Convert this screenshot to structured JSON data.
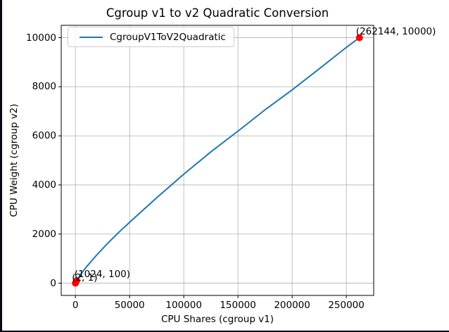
{
  "figure": {
    "background": "#ffffff",
    "frame_color": "#0a0a14"
  },
  "chart_data": {
    "type": "line",
    "title": "Cgroup v1 to v2 Quadratic Conversion",
    "xlabel": "CPU Shares (cgroup v1)",
    "ylabel": "CPU Weight (cgroup v2)",
    "grid": true,
    "grid_color": "#b0b0b0",
    "axes_color": "#000000",
    "xlim": [
      -13105,
      275249
    ],
    "ylim": [
      -499,
      10500
    ],
    "x_ticks": [
      0,
      50000,
      100000,
      150000,
      200000,
      250000
    ],
    "x_tick_labels": [
      "0",
      "50000",
      "100000",
      "150000",
      "200000",
      "250000"
    ],
    "y_ticks": [
      0,
      2000,
      4000,
      6000,
      8000,
      10000
    ],
    "y_tick_labels": [
      "0",
      "2000",
      "4000",
      "6000",
      "8000",
      "10000"
    ],
    "legend": {
      "position": "upper-left",
      "entries": [
        {
          "label": "CgroupV1ToV2Quadratic",
          "color": "#1f77b4"
        }
      ]
    },
    "series": [
      {
        "name": "CgroupV1ToV2Quadratic",
        "color": "#1f77b4",
        "x": [
          2,
          1024,
          2500,
          5000,
          10000,
          20000,
          30000,
          40000,
          50000,
          75000,
          100000,
          125000,
          150000,
          175000,
          200000,
          225000,
          250000,
          262144
        ],
        "y": [
          1,
          100,
          210,
          370,
          655,
          1165,
          1635,
          2070,
          2480,
          3480,
          4440,
          5350,
          6190,
          7060,
          7870,
          8730,
          9600,
          10000
        ]
      }
    ],
    "annotated_points": [
      {
        "x": 2,
        "y": 1,
        "color": "#ff0000",
        "label": "(2, 1)"
      },
      {
        "x": 1024,
        "y": 100,
        "color": "#ff0000",
        "label": "(1024, 100)"
      },
      {
        "x": 262144,
        "y": 10000,
        "color": "#ff0000",
        "label": "(262144, 10000)"
      }
    ]
  }
}
